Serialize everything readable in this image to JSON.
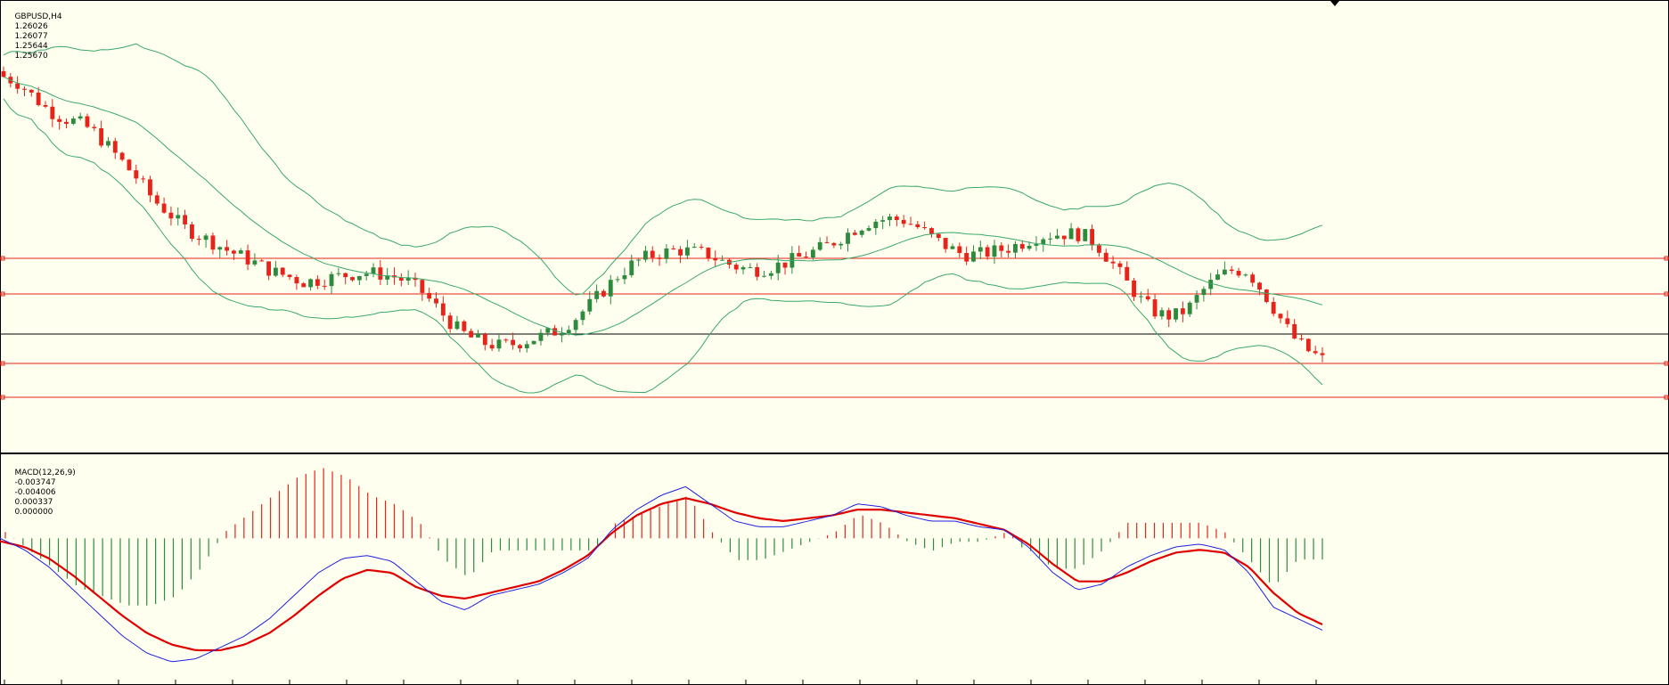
{
  "price_header": {
    "symbol_tf": "GBPUSD,H4",
    "open": "1.26026",
    "high": "1.26077",
    "low": "1.25644",
    "close": "1.25670"
  },
  "macd_header": {
    "name": "MACD(12,26,9)",
    "v1": "-0.003747",
    "v2": "-0.004006",
    "v3": "0.000337",
    "v4": "0.000000"
  },
  "colors": {
    "background": "#fffff0",
    "bull_candle": "#2e8b3e",
    "bear_candle": "#e8231a",
    "bands": "#3aa86a",
    "level_lines": "#e8231a",
    "current_price_line": "#000000",
    "macd_line": "#2020e0",
    "signal_line": "#e00000",
    "hist_pos": "#e8231a",
    "hist_neg": "#2e8b3e"
  },
  "chart_data": [
    {
      "type": "candlestick",
      "symbol": "GBPUSD",
      "timeframe": "H4",
      "indicators": [
        "Bollinger Bands"
      ],
      "horizontal_levels": [
        "level-1",
        "level-2",
        "level-3",
        "level-4"
      ],
      "current_price_line": true,
      "close_series": [
        1.2975,
        1.2968,
        1.2953,
        1.2938,
        1.2929,
        1.2925,
        1.2915,
        1.2898,
        1.288,
        1.2862,
        1.284,
        1.2826,
        1.281,
        1.2801,
        1.2793,
        1.2784,
        1.2777,
        1.2769,
        1.2761,
        1.2756,
        1.275,
        1.2752,
        1.2755,
        1.2758,
        1.276,
        1.2759,
        1.2756,
        1.275,
        1.2738,
        1.272,
        1.2702,
        1.269,
        1.2683,
        1.268,
        1.2682,
        1.2686,
        1.2691,
        1.2697,
        1.2708,
        1.2723,
        1.274,
        1.2757,
        1.277,
        1.2778,
        1.2782,
        1.2785,
        1.2783,
        1.278,
        1.2772,
        1.2766,
        1.2763,
        1.2765,
        1.277,
        1.2776,
        1.2783,
        1.279,
        1.28,
        1.281,
        1.2817,
        1.2819,
        1.2818,
        1.281,
        1.2798,
        1.2788,
        1.278,
        1.278,
        1.2783,
        1.2787,
        1.2793,
        1.28,
        1.2802,
        1.2803,
        1.2802,
        1.279,
        1.277,
        1.2748,
        1.2728,
        1.2715,
        1.2712,
        1.272,
        1.274,
        1.2755,
        1.2763,
        1.2762,
        1.274,
        1.2715,
        1.269,
        1.2675,
        1.2665
      ]
    },
    {
      "type": "line",
      "title": "MACD(12,26,9)",
      "values_shown": [
        -0.003747,
        -0.004006,
        0.000337,
        0.0
      ],
      "series": [
        {
          "name": "MACD",
          "color": "blue"
        },
        {
          "name": "Signal",
          "color": "red"
        },
        {
          "name": "Histogram",
          "style": "bars"
        }
      ],
      "macd": [
        0.0,
        -0.0004,
        -0.001,
        -0.0018,
        -0.0026,
        -0.0034,
        -0.004,
        -0.0043,
        -0.0042,
        -0.0038,
        -0.0034,
        -0.0028,
        -0.002,
        -0.0012,
        -0.0007,
        -0.0006,
        -0.0008,
        -0.0015,
        -0.0022,
        -0.0025,
        -0.002,
        -0.0018,
        -0.0016,
        -0.0012,
        -0.0007,
        0.0003,
        0.001,
        0.0015,
        0.0018,
        0.0012,
        0.0006,
        0.0004,
        0.0004,
        0.0006,
        0.0008,
        0.0012,
        0.0011,
        0.0008,
        0.0006,
        0.0006,
        0.0004,
        0.0003,
        -0.0003,
        -0.0012,
        -0.0018,
        -0.0016,
        -0.001,
        -0.0006,
        -0.0003,
        -0.0002,
        -0.0004,
        -0.0012,
        -0.0024,
        -0.0028,
        -0.0032
      ],
      "signal": [
        -0.0001,
        -0.0003,
        -0.0007,
        -0.0013,
        -0.002,
        -0.0027,
        -0.0033,
        -0.0037,
        -0.0039,
        -0.0039,
        -0.0037,
        -0.0033,
        -0.0027,
        -0.002,
        -0.0014,
        -0.0011,
        -0.0012,
        -0.0017,
        -0.002,
        -0.0021,
        -0.0019,
        -0.0017,
        -0.0015,
        -0.0011,
        -0.0006,
        0.0002,
        0.0008,
        0.0012,
        0.0014,
        0.0012,
        0.0009,
        0.0007,
        0.0006,
        0.0007,
        0.0008,
        0.001,
        0.001,
        0.0009,
        0.0008,
        0.0007,
        0.0005,
        0.0003,
        -0.0002,
        -0.0009,
        -0.0015,
        -0.0015,
        -0.0012,
        -0.0008,
        -0.0005,
        -0.0004,
        -0.0005,
        -0.001,
        -0.0019,
        -0.0026,
        -0.003
      ]
    }
  ]
}
